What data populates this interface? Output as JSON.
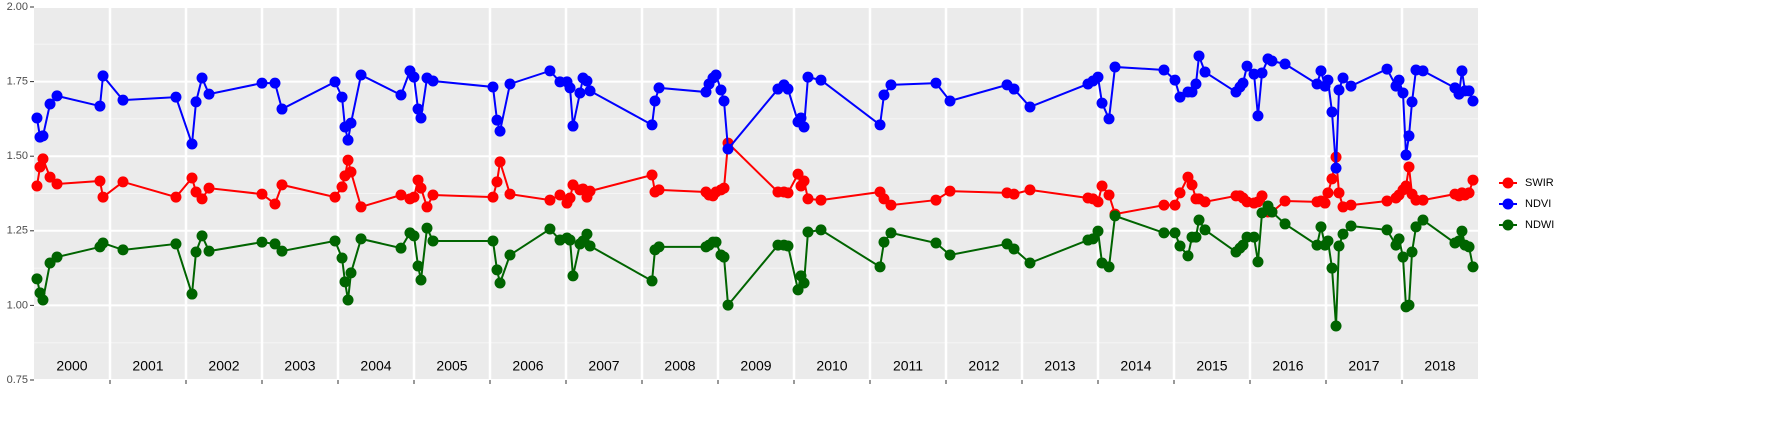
{
  "chart_data": {
    "type": "line",
    "x": [
      2000.039,
      2000.079,
      2000.118,
      2000.211,
      2000.303,
      2000.868,
      2000.908,
      2001.171,
      2001.868,
      2002.079,
      2002.132,
      2002.211,
      2002.303,
      2003.0,
      2003.171,
      2003.263,
      2003.961,
      2004.053,
      2004.092,
      2004.132,
      2004.171,
      2004.303,
      2004.829,
      2004.947,
      2005.0,
      2005.053,
      2005.092,
      2005.171,
      2005.25,
      2006.039,
      2006.092,
      2006.132,
      2006.263,
      2006.789,
      2006.921,
      2007.013,
      2007.053,
      2007.092,
      2007.184,
      2007.224,
      2007.276,
      2007.316,
      2008.132,
      2008.171,
      2008.224,
      2008.842,
      2008.882,
      2008.934,
      2008.974,
      2009.039,
      2009.079,
      2009.132,
      2009.789,
      2009.868,
      2009.921,
      2010.053,
      2010.092,
      2010.132,
      2010.184,
      2010.355,
      2011.132,
      2011.184,
      2011.276,
      2011.868,
      2012.053,
      2012.803,
      2012.895,
      2013.105,
      2013.868,
      2013.934,
      2014.0,
      2014.053,
      2014.145,
      2014.224,
      2014.868,
      2015.013,
      2015.079,
      2015.184,
      2015.237,
      2015.289,
      2015.329,
      2015.408,
      2015.816,
      2015.868,
      2015.908,
      2015.961,
      2016.053,
      2016.105,
      2016.158,
      2016.237,
      2016.289,
      2016.461,
      2016.882,
      2016.934,
      2016.987,
      2017.026,
      2017.079,
      2017.132,
      2017.171,
      2017.224,
      2017.329,
      2017.803,
      2017.921,
      2017.961,
      2018.013,
      2018.053,
      2018.092,
      2018.132,
      2018.184,
      2018.276,
      2018.697,
      2018.75,
      2018.789,
      2018.829,
      2018.882,
      2018.934
    ],
    "series": [
      {
        "name": "SWIR",
        "color": "#ff0000",
        "values": [
          1.4,
          1.464,
          1.491,
          1.43,
          1.407,
          1.417,
          1.363,
          1.414,
          1.363,
          1.427,
          1.38,
          1.357,
          1.393,
          1.373,
          1.34,
          1.404,
          1.363,
          1.397,
          1.434,
          1.487,
          1.447,
          1.33,
          1.37,
          1.357,
          1.363,
          1.42,
          1.393,
          1.33,
          1.37,
          1.363,
          1.414,
          1.481,
          1.373,
          1.353,
          1.37,
          1.343,
          1.36,
          1.404,
          1.387,
          1.39,
          1.363,
          1.383,
          1.437,
          1.38,
          1.387,
          1.38,
          1.37,
          1.367,
          1.38,
          1.387,
          1.393,
          1.544,
          1.38,
          1.38,
          1.377,
          1.44,
          1.4,
          1.417,
          1.357,
          1.353,
          1.38,
          1.357,
          1.336,
          1.353,
          1.383,
          1.377,
          1.373,
          1.387,
          1.36,
          1.357,
          1.347,
          1.4,
          1.37,
          1.306,
          1.336,
          1.336,
          1.377,
          1.43,
          1.404,
          1.357,
          1.357,
          1.347,
          1.367,
          1.367,
          1.36,
          1.347,
          1.343,
          1.347,
          1.367,
          1.313,
          1.313,
          1.35,
          1.347,
          1.35,
          1.343,
          1.377,
          1.424,
          1.497,
          1.377,
          1.33,
          1.336,
          1.35,
          1.36,
          1.37,
          1.387,
          1.4,
          1.464,
          1.373,
          1.353,
          1.353,
          1.373,
          1.367,
          1.377,
          1.37,
          1.377,
          1.42
        ]
      },
      {
        "name": "NDVI",
        "color": "#0000ff",
        "values": [
          1.628,
          1.564,
          1.568,
          1.675,
          1.702,
          1.668,
          1.769,
          1.688,
          1.698,
          1.541,
          1.682,
          1.762,
          1.708,
          1.745,
          1.745,
          1.658,
          1.749,
          1.698,
          1.598,
          1.554,
          1.611,
          1.772,
          1.705,
          1.786,
          1.765,
          1.658,
          1.628,
          1.762,
          1.752,
          1.732,
          1.621,
          1.584,
          1.742,
          1.786,
          1.749,
          1.749,
          1.729,
          1.601,
          1.712,
          1.762,
          1.752,
          1.719,
          1.605,
          1.685,
          1.729,
          1.715,
          1.742,
          1.762,
          1.772,
          1.722,
          1.685,
          1.524,
          1.725,
          1.739,
          1.725,
          1.615,
          1.628,
          1.598,
          1.765,
          1.755,
          1.605,
          1.705,
          1.739,
          1.745,
          1.685,
          1.739,
          1.725,
          1.665,
          1.742,
          1.752,
          1.765,
          1.678,
          1.625,
          1.799,
          1.789,
          1.755,
          1.698,
          1.715,
          1.715,
          1.742,
          1.836,
          1.782,
          1.715,
          1.732,
          1.745,
          1.802,
          1.775,
          1.635,
          1.779,
          1.826,
          1.819,
          1.809,
          1.742,
          1.786,
          1.735,
          1.755,
          1.648,
          1.46,
          1.722,
          1.762,
          1.735,
          1.792,
          1.735,
          1.755,
          1.712,
          1.504,
          1.568,
          1.682,
          1.789,
          1.786,
          1.729,
          1.708,
          1.786,
          1.719,
          1.719,
          1.685
        ]
      },
      {
        "name": "NDWI",
        "color": "#006400",
        "values": [
          1.089,
          1.042,
          1.018,
          1.142,
          1.162,
          1.196,
          1.209,
          1.186,
          1.206,
          1.038,
          1.179,
          1.233,
          1.182,
          1.212,
          1.206,
          1.182,
          1.216,
          1.159,
          1.079,
          1.018,
          1.109,
          1.223,
          1.192,
          1.243,
          1.233,
          1.132,
          1.085,
          1.259,
          1.216,
          1.216,
          1.119,
          1.075,
          1.169,
          1.256,
          1.219,
          1.226,
          1.219,
          1.099,
          1.206,
          1.216,
          1.239,
          1.199,
          1.082,
          1.186,
          1.196,
          1.196,
          1.202,
          1.212,
          1.212,
          1.169,
          1.162,
          1.001,
          1.202,
          1.202,
          1.199,
          1.052,
          1.099,
          1.075,
          1.246,
          1.253,
          1.129,
          1.212,
          1.243,
          1.209,
          1.169,
          1.206,
          1.189,
          1.142,
          1.219,
          1.223,
          1.249,
          1.142,
          1.129,
          1.3,
          1.243,
          1.243,
          1.199,
          1.166,
          1.229,
          1.229,
          1.286,
          1.253,
          1.179,
          1.192,
          1.202,
          1.229,
          1.229,
          1.146,
          1.31,
          1.333,
          1.313,
          1.273,
          1.202,
          1.263,
          1.202,
          1.216,
          1.125,
          0.931,
          1.199,
          1.239,
          1.266,
          1.253,
          1.202,
          1.223,
          1.162,
          0.995,
          1.001,
          1.179,
          1.263,
          1.286,
          1.209,
          1.216,
          1.249,
          1.202,
          1.196,
          1.129
        ]
      }
    ],
    "xlim": [
      2000,
      2019
    ],
    "xticks": [
      2001,
      2002,
      2003,
      2004,
      2005,
      2006,
      2007,
      2008,
      2009,
      2010,
      2011,
      2012,
      2013,
      2014,
      2015,
      2016,
      2017,
      2018
    ],
    "ylim": [
      0.75,
      2.0
    ],
    "yticks": [
      {
        "value": 0.75,
        "label": "0.75"
      },
      {
        "value": 1.0,
        "label": "1.00"
      },
      {
        "value": 1.25,
        "label": "1.25"
      },
      {
        "value": 1.5,
        "label": "1.50"
      },
      {
        "value": 1.75,
        "label": "1.75"
      },
      {
        "value": 2.0,
        "label": "2.00"
      }
    ],
    "year_labels": [
      {
        "value": 2000.5,
        "label": "2000"
      },
      {
        "value": 2001.5,
        "label": "2001"
      },
      {
        "value": 2002.5,
        "label": "2002"
      },
      {
        "value": 2003.5,
        "label": "2003"
      },
      {
        "value": 2004.5,
        "label": "2004"
      },
      {
        "value": 2005.5,
        "label": "2005"
      },
      {
        "value": 2006.5,
        "label": "2006"
      },
      {
        "value": 2007.5,
        "label": "2007"
      },
      {
        "value": 2008.5,
        "label": "2008"
      },
      {
        "value": 2009.5,
        "label": "2009"
      },
      {
        "value": 2010.5,
        "label": "2010"
      },
      {
        "value": 2011.5,
        "label": "2011"
      },
      {
        "value": 2012.5,
        "label": "2012"
      },
      {
        "value": 2013.5,
        "label": "2013"
      },
      {
        "value": 2014.5,
        "label": "2014"
      },
      {
        "value": 2015.5,
        "label": "2015"
      },
      {
        "value": 2016.5,
        "label": "2016"
      },
      {
        "value": 2017.5,
        "label": "2017"
      },
      {
        "value": 2018.5,
        "label": "2018"
      }
    ],
    "grid": true,
    "legend": "right"
  }
}
